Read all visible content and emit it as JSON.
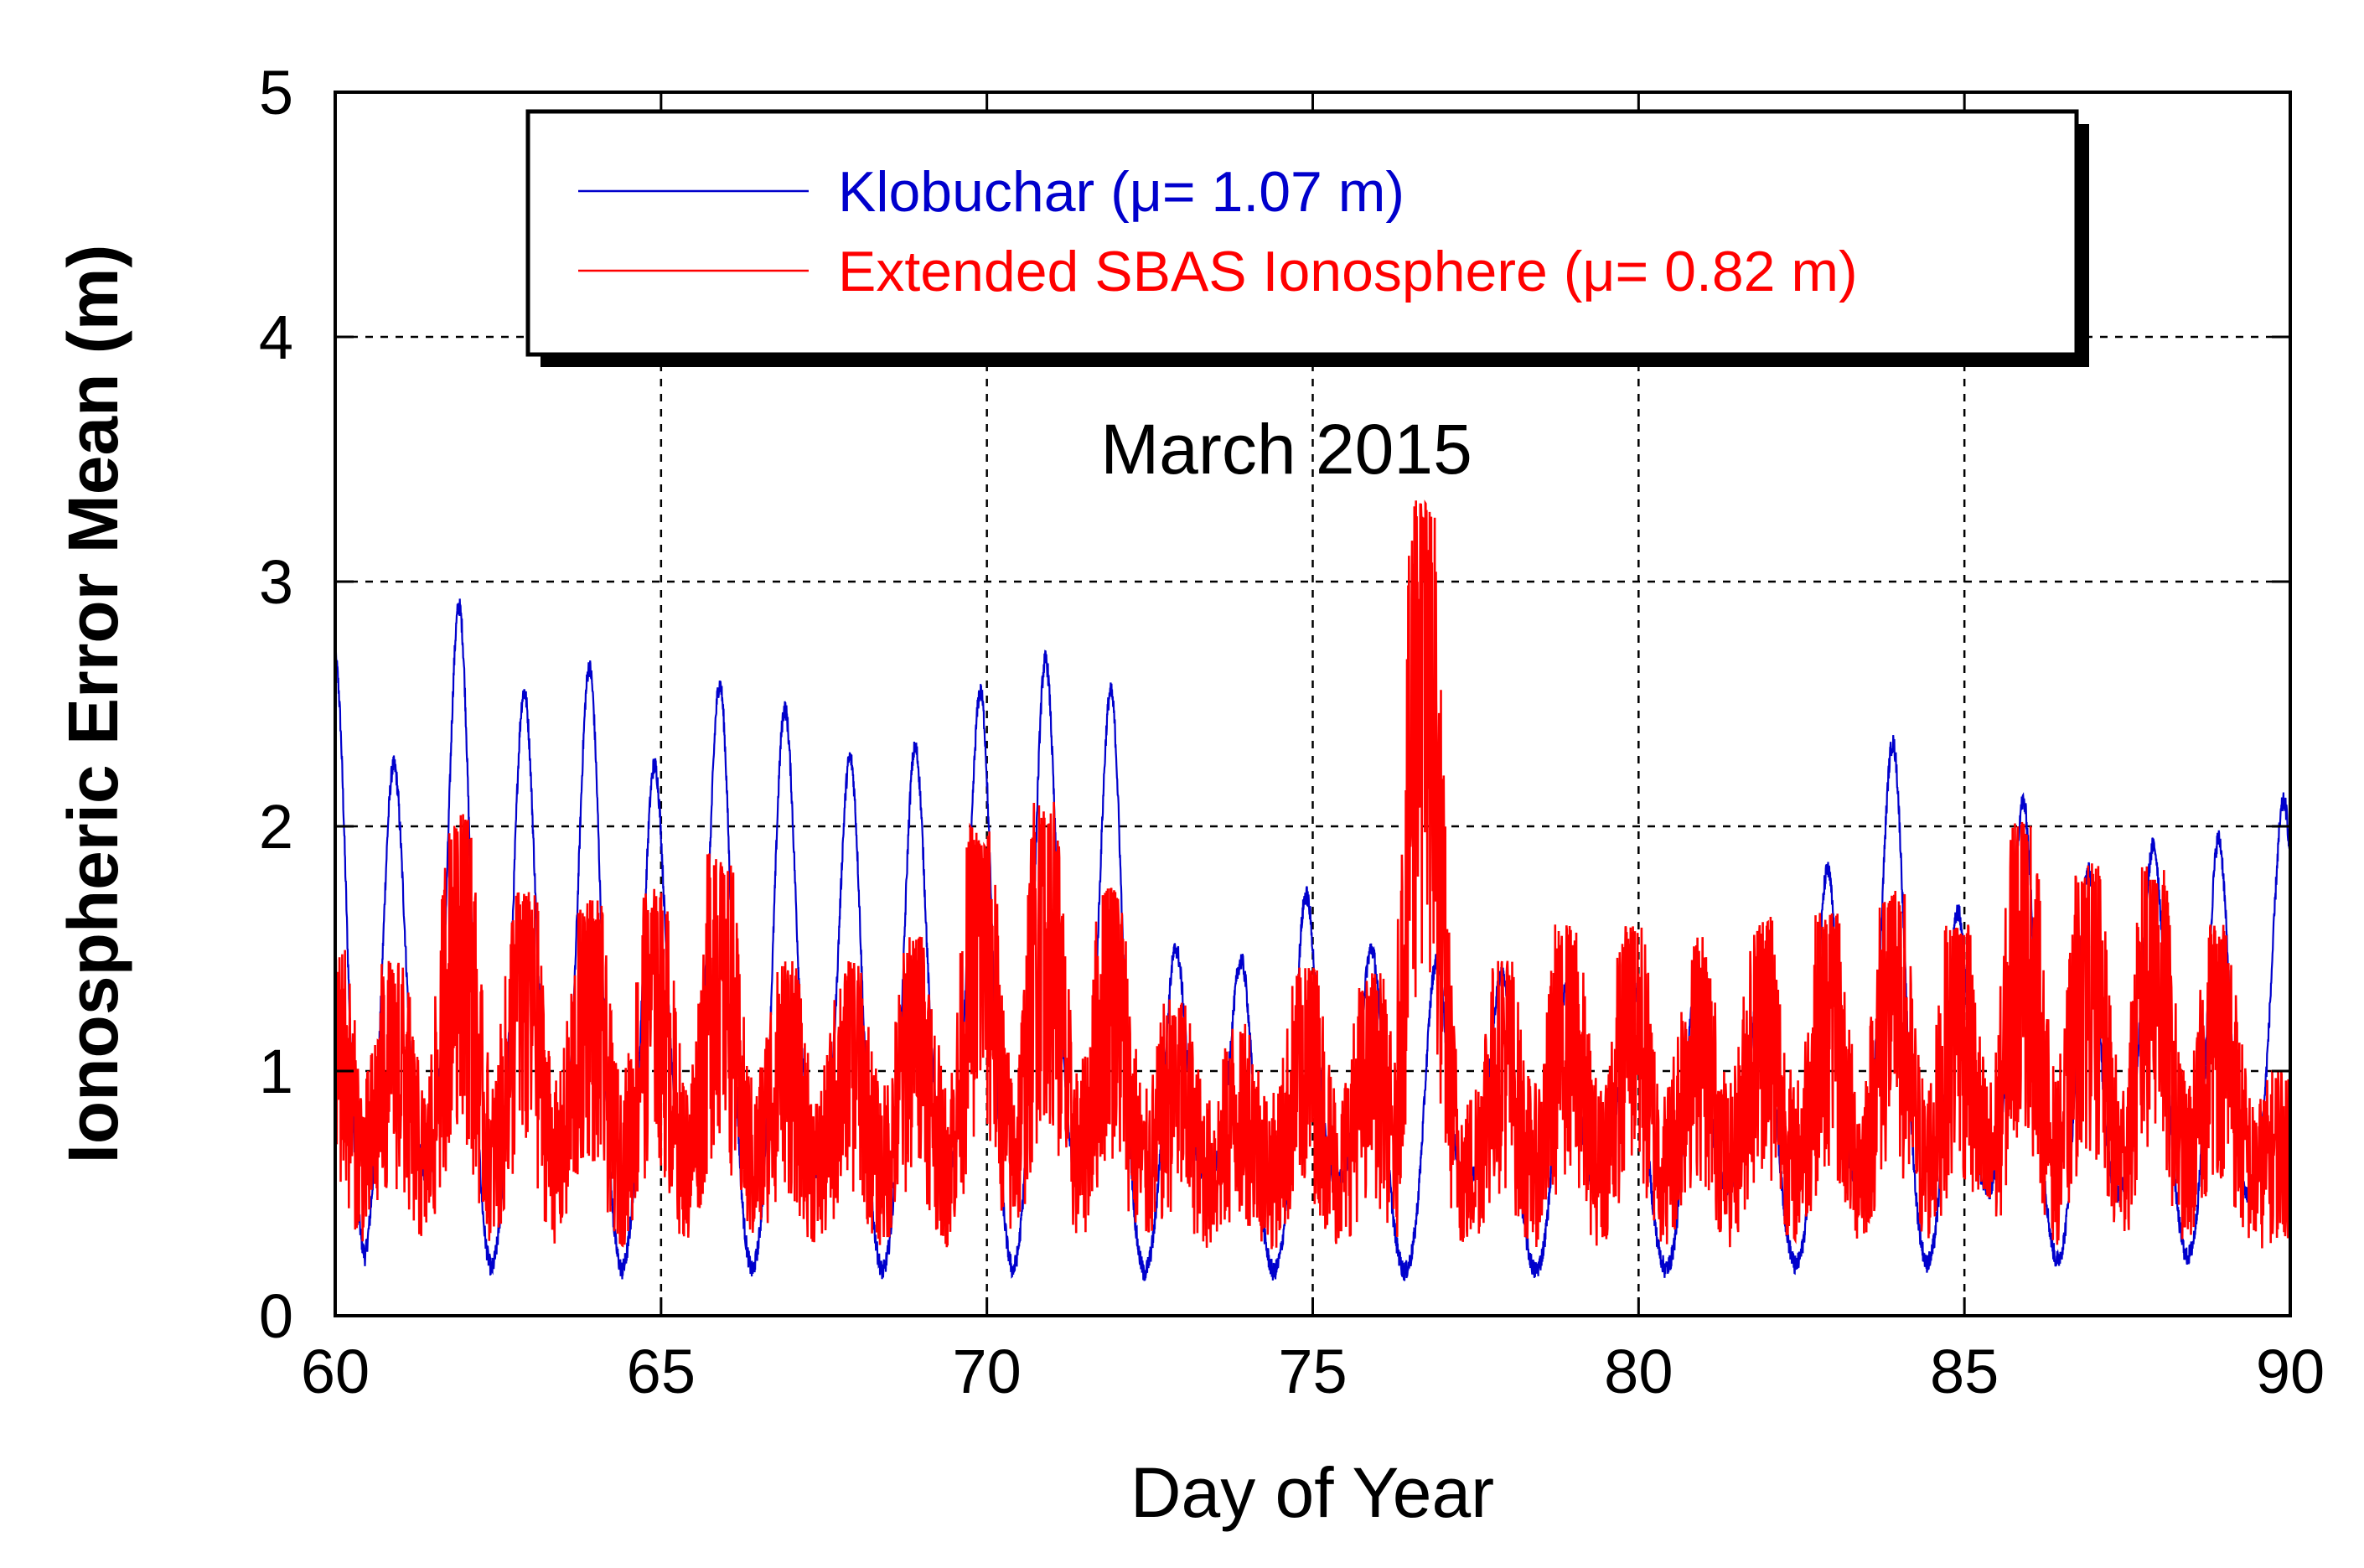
{
  "chart_data": {
    "type": "line",
    "title": "",
    "annotation": "March 2015",
    "xlabel": "Day of Year",
    "ylabel": "Ionospheric Error Mean (m)",
    "xlim": [
      60,
      90
    ],
    "ylim": [
      0,
      5
    ],
    "xticks": [
      60,
      65,
      70,
      75,
      80,
      85,
      90
    ],
    "yticks": [
      0,
      1,
      2,
      3,
      4,
      5
    ],
    "grid": true,
    "legend_position": "top-center",
    "series": [
      {
        "name": "Klobuchar (μ= 1.07 m)",
        "color": "#0000cc",
        "mean": 1.07,
        "daily_peaks": [
          {
            "day": 60.0,
            "value": 2.68
          },
          {
            "day": 60.9,
            "value": 2.25
          },
          {
            "day": 61.9,
            "value": 2.9
          },
          {
            "day": 62.9,
            "value": 2.55
          },
          {
            "day": 63.9,
            "value": 2.65
          },
          {
            "day": 64.9,
            "value": 2.25
          },
          {
            "day": 65.9,
            "value": 2.58
          },
          {
            "day": 66.9,
            "value": 2.48
          },
          {
            "day": 67.9,
            "value": 2.28
          },
          {
            "day": 68.9,
            "value": 2.32
          },
          {
            "day": 69.9,
            "value": 2.55
          },
          {
            "day": 70.9,
            "value": 2.68
          },
          {
            "day": 71.9,
            "value": 2.55
          },
          {
            "day": 72.9,
            "value": 1.5
          },
          {
            "day": 73.9,
            "value": 1.45
          },
          {
            "day": 74.9,
            "value": 1.72
          },
          {
            "day": 75.9,
            "value": 1.5
          },
          {
            "day": 76.9,
            "value": 1.45
          },
          {
            "day": 77.9,
            "value": 1.4
          },
          {
            "day": 78.9,
            "value": 1.35
          },
          {
            "day": 79.9,
            "value": 1.4
          },
          {
            "day": 80.9,
            "value": 1.42
          },
          {
            "day": 81.9,
            "value": 1.45
          },
          {
            "day": 82.9,
            "value": 1.82
          },
          {
            "day": 83.9,
            "value": 2.34
          },
          {
            "day": 84.9,
            "value": 1.65
          },
          {
            "day": 85.9,
            "value": 2.1
          },
          {
            "day": 86.9,
            "value": 1.82
          },
          {
            "day": 87.9,
            "value": 1.92
          },
          {
            "day": 88.9,
            "value": 1.95
          },
          {
            "day": 89.9,
            "value": 2.1
          }
        ]
      },
      {
        "name": "Extended SBAS Ionosphere (μ= 0.82 m)",
        "color": "#ff0000",
        "mean": 0.82,
        "daily_peaks": [
          {
            "day": 60.0,
            "value": 1.5
          },
          {
            "day": 60.9,
            "value": 1.45
          },
          {
            "day": 61.9,
            "value": 2.05
          },
          {
            "day": 62.9,
            "value": 1.75
          },
          {
            "day": 63.9,
            "value": 1.7
          },
          {
            "day": 64.9,
            "value": 1.75
          },
          {
            "day": 65.9,
            "value": 1.9
          },
          {
            "day": 66.9,
            "value": 1.45
          },
          {
            "day": 67.9,
            "value": 1.45
          },
          {
            "day": 68.9,
            "value": 1.55
          },
          {
            "day": 69.9,
            "value": 2.0
          },
          {
            "day": 70.9,
            "value": 2.1
          },
          {
            "day": 71.9,
            "value": 1.75
          },
          {
            "day": 72.9,
            "value": 1.3
          },
          {
            "day": 73.9,
            "value": 1.2
          },
          {
            "day": 74.9,
            "value": 1.45
          },
          {
            "day": 75.9,
            "value": 1.4
          },
          {
            "day": 76.7,
            "value": 3.35
          },
          {
            "day": 77.9,
            "value": 1.45
          },
          {
            "day": 78.9,
            "value": 1.6
          },
          {
            "day": 79.9,
            "value": 1.6
          },
          {
            "day": 80.9,
            "value": 1.55
          },
          {
            "day": 81.9,
            "value": 1.65
          },
          {
            "day": 82.9,
            "value": 1.65
          },
          {
            "day": 83.9,
            "value": 1.75
          },
          {
            "day": 84.9,
            "value": 1.6
          },
          {
            "day": 85.9,
            "value": 2.02
          },
          {
            "day": 86.9,
            "value": 1.85
          },
          {
            "day": 87.9,
            "value": 1.85
          },
          {
            "day": 88.9,
            "value": 1.6
          },
          {
            "day": 89.9,
            "value": 1.05
          }
        ]
      }
    ]
  }
}
